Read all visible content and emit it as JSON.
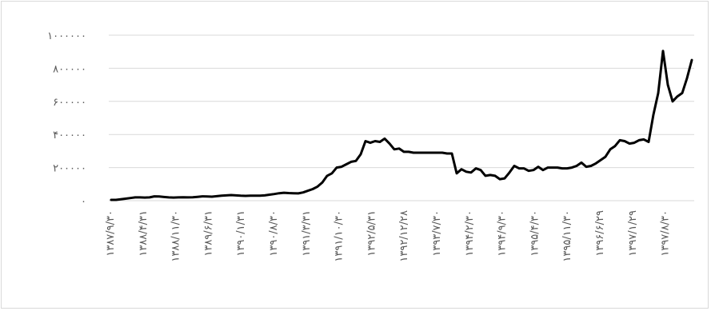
{
  "chart_data": {
    "type": "line",
    "title": "",
    "xlabel": "",
    "ylabel": "",
    "ylim": [
      0,
      1000000
    ],
    "grid": "horizontal",
    "legend": "none",
    "line_color": "#000000",
    "y_ticks": [
      {
        "value": 0,
        "label": "۰"
      },
      {
        "value": 200000,
        "label": "۲۰۰۰۰۰"
      },
      {
        "value": 400000,
        "label": "۴۰۰۰۰۰"
      },
      {
        "value": 600000,
        "label": "۶۰۰۰۰۰"
      },
      {
        "value": 800000,
        "label": "۸۰۰۰۰۰"
      },
      {
        "value": 1000000,
        "label": "۱۰۰۰۰۰۰"
      }
    ],
    "x_tick_labels": [
      "۱۳۸۷/۹/۳۰",
      "۱۳۸۸/۴/۳۱",
      "۱۳۸۸/۱۱/۳۰",
      "۱۳۸۹/۶/۳۱",
      "۱۳۹۰/۱/۳۱",
      "۱۳۹۰/۸/۳۰",
      "۱۳۹۱/۳/۳۱",
      "۱۳۹۱/۱۰/۳۰",
      "۱۳۹۲/۵/۳۱",
      "۱۳۹۲/۱۲/۲۸",
      "۱۳۹۳/۷/۳۰",
      "۱۳۹۴/۲/۳۰",
      "۱۳۹۴/۹/۳۰",
      "۱۳۹۵/۴/۳۰",
      "۱۳۹۵/۱۱/۳۰",
      "۱۳۹۶/۶/۲۹",
      "۱۳۹۷/۱/۲۹",
      "۱۳۹۷/۸/۳۰"
    ],
    "series": [
      {
        "values": [
          5000,
          5000,
          8000,
          12000,
          16000,
          20000,
          20000,
          19000,
          20000,
          26000,
          25000,
          22000,
          20000,
          19000,
          20000,
          21000,
          20000,
          21000,
          23000,
          26000,
          25000,
          24000,
          27000,
          30000,
          32000,
          34000,
          32000,
          30000,
          29000,
          30000,
          30000,
          30000,
          32000,
          36000,
          40000,
          45000,
          48000,
          46000,
          45000,
          44000,
          50000,
          60000,
          70000,
          85000,
          110000,
          150000,
          165000,
          200000,
          205000,
          220000,
          235000,
          240000,
          280000,
          360000,
          350000,
          360000,
          355000,
          375000,
          345000,
          310000,
          315000,
          295000,
          295000,
          290000,
          290000,
          290000,
          290000,
          290000,
          290000,
          290000,
          285000,
          285000,
          165000,
          190000,
          175000,
          170000,
          195000,
          185000,
          150000,
          155000,
          150000,
          130000,
          135000,
          170000,
          210000,
          195000,
          195000,
          180000,
          185000,
          205000,
          185000,
          200000,
          200000,
          200000,
          195000,
          195000,
          200000,
          210000,
          230000,
          205000,
          210000,
          225000,
          245000,
          265000,
          310000,
          330000,
          365000,
          360000,
          345000,
          350000,
          365000,
          370000,
          355000,
          520000,
          650000,
          905000,
          700000,
          600000,
          630000,
          650000,
          740000,
          850000
        ]
      }
    ]
  }
}
